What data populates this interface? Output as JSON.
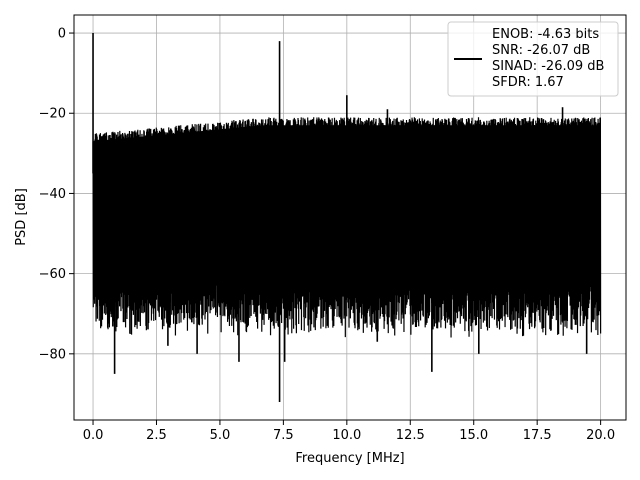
{
  "chart_data": {
    "type": "line",
    "xlabel": "Frequency [MHz]",
    "ylabel": "PSD [dB]",
    "xlim": [
      -0.75,
      21.0
    ],
    "ylim": [
      -96.5,
      4.5
    ],
    "xticks": [
      0.0,
      2.5,
      5.0,
      7.5,
      10.0,
      12.5,
      15.0,
      17.5,
      20.0
    ],
    "xtick_labels": [
      "0.0",
      "2.5",
      "5.0",
      "7.5",
      "10.0",
      "12.5",
      "15.0",
      "17.5",
      "20.0"
    ],
    "yticks": [
      0,
      -20,
      -40,
      -60,
      -80
    ],
    "ytick_labels": [
      "0",
      "−20",
      "−40",
      "−60",
      "−80"
    ],
    "grid": true,
    "legend_position": "top-right",
    "series": [
      {
        "name": "ENOB: -4.63 bits\nSNR: -26.07 dB\nSINAD: -26.09 dB\nSFDR: 1.67",
        "color": "#000000",
        "x_range": [
          0.0,
          20.0
        ],
        "noise_floor_upper_db": [
          -28,
          -24
        ],
        "noise_floor_lower_db": [
          -72,
          -62
        ],
        "peaks": [
          {
            "x": 0.0,
            "y": 0.0
          },
          {
            "x": 7.35,
            "y": -2.0
          },
          {
            "x": 10.0,
            "y": -15.5
          },
          {
            "x": 11.6,
            "y": -19.0
          },
          {
            "x": 18.5,
            "y": -18.5
          }
        ],
        "dips": [
          {
            "x": 0.85,
            "y": -85.0
          },
          {
            "x": 2.95,
            "y": -78.0
          },
          {
            "x": 4.1,
            "y": -80.0
          },
          {
            "x": 5.75,
            "y": -82.0
          },
          {
            "x": 7.35,
            "y": -92.0
          },
          {
            "x": 7.55,
            "y": -82.0
          },
          {
            "x": 11.2,
            "y": -77.0
          },
          {
            "x": 13.35,
            "y": -84.5
          },
          {
            "x": 15.2,
            "y": -80.0
          },
          {
            "x": 19.45,
            "y": -80.0
          }
        ]
      }
    ],
    "legend_lines": [
      "ENOB: -4.63 bits",
      "SNR: -26.07 dB",
      "SINAD: -26.09 dB",
      "SFDR: 1.67"
    ]
  }
}
